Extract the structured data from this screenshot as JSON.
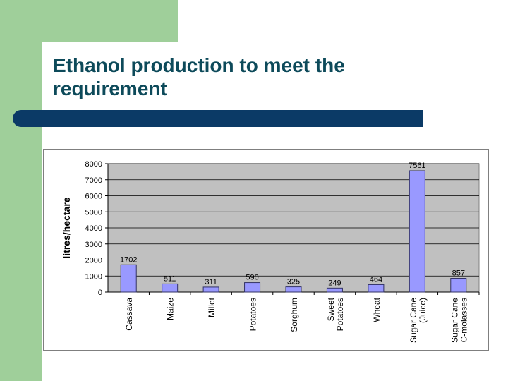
{
  "slide": {
    "title": "Ethanol production to meet the requirement"
  },
  "colors": {
    "green_accent": "#9fcf9a",
    "title_text": "#0d4a5a",
    "title_bar": "#0b3a66",
    "bar_fill": "#9999ff",
    "plot_background": "#c0c0c0"
  },
  "chart_data": {
    "type": "bar",
    "ylabel": "litres/hectare",
    "ylim": [
      0,
      8000
    ],
    "yticks": [
      0,
      1000,
      2000,
      3000,
      4000,
      5000,
      6000,
      7000,
      8000
    ],
    "grid": true,
    "categories": [
      [
        "Cassava"
      ],
      [
        "Maize"
      ],
      [
        "Millet"
      ],
      [
        "Potatoes"
      ],
      [
        "Sorghum"
      ],
      [
        "Sweet",
        "Potatoes"
      ],
      [
        "Wheat"
      ],
      [
        "Sugar Cane",
        "(Juice)"
      ],
      [
        "Sugar Cane",
        "C-molasses"
      ]
    ],
    "values": [
      1702,
      511,
      311,
      590,
      325,
      249,
      464,
      7561,
      857
    ]
  }
}
